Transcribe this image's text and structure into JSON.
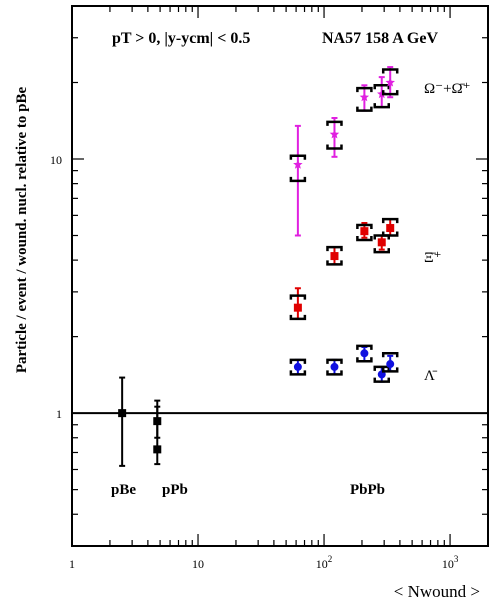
{
  "chart_data": {
    "type": "scatter",
    "title": "",
    "header_left": "pT > 0,   |y-ycm| < 0.5",
    "header_right": "NA57 158 A GeV",
    "ylabel": "Particle / event / wound. nucl. relative to pBe",
    "xlabel": "< Nwound >",
    "x_scale": "log",
    "y_scale": "log",
    "xlim": [
      1,
      2000
    ],
    "ylim": [
      0.3,
      40
    ],
    "x_ticks": [
      {
        "value": 1,
        "label": "1"
      },
      {
        "value": 10,
        "label": "10"
      },
      {
        "value": 100,
        "label": "10^2"
      },
      {
        "value": 1000,
        "label": "10^3"
      }
    ],
    "y_ticks": [
      {
        "value": 1,
        "label": "1"
      },
      {
        "value": 10,
        "label": "10"
      }
    ],
    "reference_line": {
      "y": 1
    },
    "annotations": [
      "pBe",
      "pPb",
      "PbPb"
    ],
    "series": [
      {
        "name": "Ω⁻+Ω̄⁺",
        "color": "#e020e0",
        "marker": "star",
        "points": [
          {
            "x": 62,
            "y": 9.5,
            "stat_lo": 5.0,
            "stat_hi": 13.5,
            "sys_lo": 8.2,
            "sys_hi": 10.3
          },
          {
            "x": 121,
            "y": 12.5,
            "stat_lo": 10.2,
            "stat_hi": 14.5,
            "sys_lo": 11.0,
            "sys_hi": 14.0
          },
          {
            "x": 209,
            "y": 17.5,
            "stat_lo": 15.5,
            "stat_hi": 19.5,
            "sys_lo": 15.5,
            "sys_hi": 19.0
          },
          {
            "x": 287,
            "y": 18.0,
            "stat_lo": 16.0,
            "stat_hi": 21.0,
            "sys_lo": 16.0,
            "sys_hi": 19.5
          },
          {
            "x": 335,
            "y": 20.0,
            "stat_lo": 17.5,
            "stat_hi": 23.0,
            "sys_lo": 18.0,
            "sys_hi": 22.5
          }
        ]
      },
      {
        "name": "Ξ̄⁺",
        "color": "#e00000",
        "marker": "square",
        "points": [
          {
            "x": 62,
            "y": 2.6,
            "stat_lo": 2.35,
            "stat_hi": 3.1,
            "sys_lo": 2.35,
            "sys_hi": 2.9
          },
          {
            "x": 121,
            "y": 4.15,
            "stat_lo": 3.85,
            "stat_hi": 4.5,
            "sys_lo": 3.85,
            "sys_hi": 4.5
          },
          {
            "x": 209,
            "y": 5.2,
            "stat_lo": 4.9,
            "stat_hi": 5.6,
            "sys_lo": 4.8,
            "sys_hi": 5.5
          },
          {
            "x": 287,
            "y": 4.7,
            "stat_lo": 4.4,
            "stat_hi": 5.0,
            "sys_lo": 4.3,
            "sys_hi": 5.0
          },
          {
            "x": 335,
            "y": 5.35,
            "stat_lo": 5.0,
            "stat_hi": 5.8,
            "sys_lo": 5.0,
            "sys_hi": 5.8
          }
        ]
      },
      {
        "name": "Λ̄",
        "color": "#1010e0",
        "marker": "circle",
        "points": [
          {
            "x": 62,
            "y": 1.52,
            "stat_lo": 1.42,
            "stat_hi": 1.62,
            "sys_lo": 1.42,
            "sys_hi": 1.62
          },
          {
            "x": 121,
            "y": 1.52,
            "stat_lo": 1.42,
            "stat_hi": 1.62,
            "sys_lo": 1.42,
            "sys_hi": 1.62
          },
          {
            "x": 209,
            "y": 1.72,
            "stat_lo": 1.6,
            "stat_hi": 1.82,
            "sys_lo": 1.6,
            "sys_hi": 1.84
          },
          {
            "x": 287,
            "y": 1.42,
            "stat_lo": 1.33,
            "stat_hi": 1.52,
            "sys_lo": 1.33,
            "sys_hi": 1.52
          },
          {
            "x": 335,
            "y": 1.56,
            "stat_lo": 1.46,
            "stat_hi": 1.68,
            "sys_lo": 1.46,
            "sys_hi": 1.72
          }
        ]
      },
      {
        "name": "pBe",
        "color": "#000000",
        "marker": "square",
        "points": [
          {
            "x": 2.5,
            "y": 1.0,
            "stat_lo": 0.62,
            "stat_hi": 1.38
          }
        ]
      },
      {
        "name": "pPb",
        "color": "#000000",
        "marker": "square",
        "points": [
          {
            "x": 4.75,
            "y": 0.93,
            "stat_lo": 0.8,
            "stat_hi": 1.06
          },
          {
            "x": 4.75,
            "y": 0.72,
            "stat_lo": 0.63,
            "stat_hi": 1.12
          }
        ]
      }
    ]
  }
}
